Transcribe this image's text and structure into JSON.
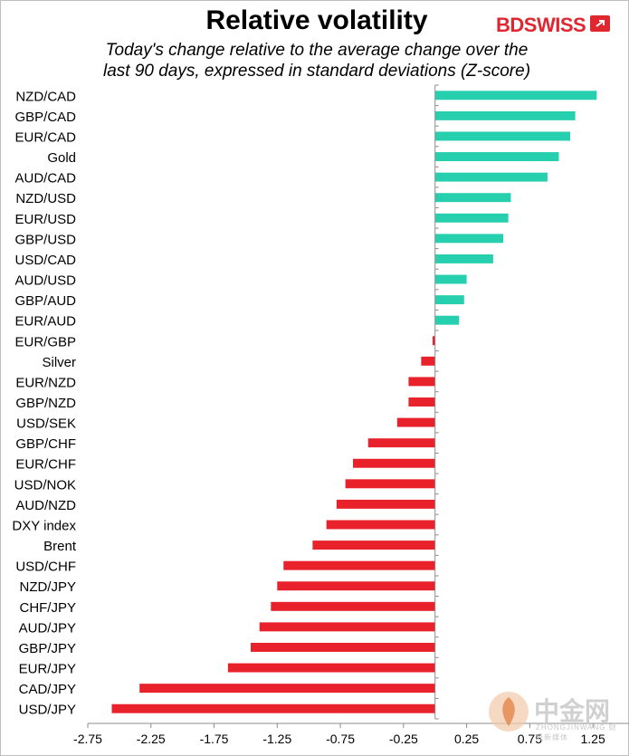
{
  "title": "Relative volatility",
  "subtitle_line1": "Today's change relative to the  average change over the",
  "subtitle_line2": "last 90 days, expressed in standard deviations (Z-score)",
  "brand": {
    "name": "BDSWISS",
    "icon": "brand-logo-icon",
    "color": "#e0262f"
  },
  "watermark": {
    "name": "中金网",
    "sub": "ZHONGJINWANG 财经新媒体",
    "icon": "watermark-logo-icon"
  },
  "colors": {
    "positive": "#26cfae",
    "negative": "#e8212b"
  },
  "chart_data": {
    "type": "bar",
    "orientation": "horizontal",
    "xlim": [
      -2.75,
      1.55
    ],
    "x_ticks": [
      "-2.75",
      "-2.25",
      "-1.75",
      "-1.25",
      "-0.75",
      "-0.25",
      "0.25",
      "0.75",
      "1.25"
    ],
    "grid": false,
    "categories": [
      "NZD/CAD",
      "GBP/CAD",
      "EUR/CAD",
      "Gold",
      "AUD/CAD",
      "NZD/USD",
      "EUR/USD",
      "GBP/USD",
      "USD/CAD",
      "AUD/USD",
      "GBP/AUD",
      "EUR/AUD",
      "EUR/GBP",
      "Silver",
      "EUR/NZD",
      "GBP/NZD",
      "USD/SEK",
      "GBP/CHF",
      "EUR/CHF",
      "USD/NOK",
      "AUD/NZD",
      "DXY index",
      "Brent",
      "USD/CHF",
      "NZD/JPY",
      "CHF/JPY",
      "AUD/JPY",
      "GBP/JPY",
      "EUR/JPY",
      "CAD/JPY",
      "USD/JPY"
    ],
    "values": [
      1.28,
      1.11,
      1.07,
      0.98,
      0.89,
      0.6,
      0.58,
      0.54,
      0.46,
      0.25,
      0.23,
      0.19,
      -0.02,
      -0.11,
      -0.21,
      -0.21,
      -0.3,
      -0.53,
      -0.65,
      -0.71,
      -0.78,
      -0.86,
      -0.97,
      -1.2,
      -1.25,
      -1.3,
      -1.39,
      -1.46,
      -1.64,
      -2.34,
      -2.56
    ]
  }
}
